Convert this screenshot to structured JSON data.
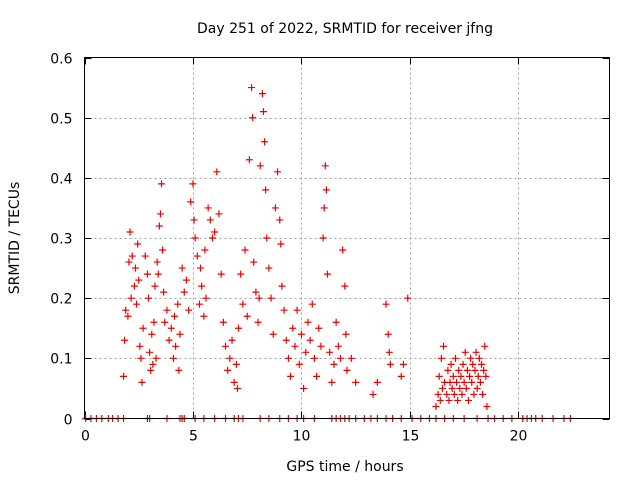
{
  "chart_data": {
    "type": "scatter",
    "title": "Day 251 of 2022, SRMTID for receiver jfng",
    "xlabel": "GPS time / hours",
    "ylabel": "SRMTID / TECUs",
    "xlim": [
      0,
      24.2
    ],
    "ylim": [
      0,
      0.6
    ],
    "xticks": [
      0,
      5,
      10,
      15,
      20
    ],
    "xtick_labels": [
      "0",
      "5",
      "10",
      "15",
      "20"
    ],
    "yticks": [
      0,
      0.1,
      0.2,
      0.3,
      0.4,
      0.5,
      0.6
    ],
    "ytick_labels": [
      "0",
      "0.1",
      "0.2",
      "0.3",
      "0.4",
      "0.5",
      "0.6"
    ],
    "grid": true,
    "marker": "plus",
    "series": [
      {
        "name": "SRMTID",
        "color": "#ee0000",
        "points": [
          [
            0.05,
            0
          ],
          [
            0.3,
            0
          ],
          [
            0.55,
            0
          ],
          [
            0.8,
            0
          ],
          [
            1.1,
            0
          ],
          [
            1.3,
            0
          ],
          [
            1.55,
            0
          ],
          [
            1.8,
            0
          ],
          [
            2.9,
            0
          ],
          [
            3.0,
            0
          ],
          [
            3.8,
            0
          ],
          [
            4.4,
            0
          ],
          [
            4.5,
            0
          ],
          [
            4.6,
            0
          ],
          [
            5.1,
            0
          ],
          [
            5.5,
            0
          ],
          [
            6.0,
            0
          ],
          [
            6.5,
            0
          ],
          [
            6.9,
            0
          ],
          [
            7.1,
            0
          ],
          [
            7.3,
            0
          ],
          [
            8.1,
            0
          ],
          [
            8.5,
            0
          ],
          [
            9.0,
            0
          ],
          [
            9.4,
            0
          ],
          [
            9.8,
            0
          ],
          [
            10.1,
            0
          ],
          [
            10.6,
            0
          ],
          [
            11.4,
            0
          ],
          [
            11.6,
            0
          ],
          [
            11.8,
            0
          ],
          [
            12.0,
            0
          ],
          [
            12.2,
            0
          ],
          [
            12.5,
            0
          ],
          [
            12.9,
            0
          ],
          [
            13.2,
            0
          ],
          [
            13.5,
            0
          ],
          [
            13.9,
            0
          ],
          [
            14.2,
            0
          ],
          [
            14.6,
            0
          ],
          [
            15.1,
            0
          ],
          [
            15.5,
            0
          ],
          [
            15.9,
            0
          ],
          [
            16.2,
            0
          ],
          [
            16.6,
            0
          ],
          [
            17.0,
            0
          ],
          [
            17.5,
            0
          ],
          [
            18.1,
            0
          ],
          [
            18.6,
            0
          ],
          [
            18.9,
            0
          ],
          [
            19.3,
            0
          ],
          [
            19.7,
            0
          ],
          [
            20.2,
            0
          ],
          [
            20.4,
            0
          ],
          [
            20.6,
            0
          ],
          [
            20.8,
            0
          ],
          [
            21.1,
            0
          ],
          [
            21.6,
            0
          ],
          [
            22.1,
            0
          ],
          [
            22.4,
            0
          ],
          [
            1.8,
            0.07
          ],
          [
            1.85,
            0.13
          ],
          [
            1.9,
            0.18
          ],
          [
            2.0,
            0.17
          ],
          [
            2.05,
            0.26
          ],
          [
            2.1,
            0.31
          ],
          [
            2.15,
            0.2
          ],
          [
            2.2,
            0.27
          ],
          [
            2.3,
            0.22
          ],
          [
            2.35,
            0.25
          ],
          [
            2.4,
            0.19
          ],
          [
            2.45,
            0.29
          ],
          [
            2.5,
            0.23
          ],
          [
            2.55,
            0.12
          ],
          [
            2.6,
            0.1
          ],
          [
            2.65,
            0.06
          ],
          [
            2.7,
            0.15
          ],
          [
            2.8,
            0.27
          ],
          [
            2.9,
            0.24
          ],
          [
            2.95,
            0.2
          ],
          [
            3.0,
            0.11
          ],
          [
            3.05,
            0.08
          ],
          [
            3.1,
            0.14
          ],
          [
            3.15,
            0.09
          ],
          [
            3.2,
            0.16
          ],
          [
            3.25,
            0.22
          ],
          [
            3.3,
            0.1
          ],
          [
            3.35,
            0.26
          ],
          [
            3.4,
            0.24
          ],
          [
            3.45,
            0.32
          ],
          [
            3.5,
            0.34
          ],
          [
            3.55,
            0.39
          ],
          [
            3.6,
            0.28
          ],
          [
            3.65,
            0.21
          ],
          [
            3.7,
            0.16
          ],
          [
            3.8,
            0.18
          ],
          [
            3.9,
            0.13
          ],
          [
            4.0,
            0.15
          ],
          [
            4.1,
            0.1
          ],
          [
            4.15,
            0.17
          ],
          [
            4.2,
            0.12
          ],
          [
            4.3,
            0.19
          ],
          [
            4.35,
            0.08
          ],
          [
            4.4,
            0.14
          ],
          [
            4.5,
            0.25
          ],
          [
            4.6,
            0.21
          ],
          [
            4.7,
            0.23
          ],
          [
            4.8,
            0.18
          ],
          [
            4.9,
            0.36
          ],
          [
            5.0,
            0.39
          ],
          [
            5.05,
            0.33
          ],
          [
            5.1,
            0.3
          ],
          [
            5.2,
            0.27
          ],
          [
            5.3,
            0.19
          ],
          [
            5.35,
            0.25
          ],
          [
            5.4,
            0.22
          ],
          [
            5.5,
            0.17
          ],
          [
            5.55,
            0.28
          ],
          [
            5.6,
            0.2
          ],
          [
            5.7,
            0.35
          ],
          [
            5.8,
            0.33
          ],
          [
            5.9,
            0.3
          ],
          [
            6.0,
            0.31
          ],
          [
            6.1,
            0.41
          ],
          [
            6.2,
            0.34
          ],
          [
            6.3,
            0.24
          ],
          [
            6.4,
            0.16
          ],
          [
            6.5,
            0.12
          ],
          [
            6.6,
            0.08
          ],
          [
            6.7,
            0.1
          ],
          [
            6.8,
            0.13
          ],
          [
            6.9,
            0.06
          ],
          [
            7.0,
            0.09
          ],
          [
            7.05,
            0.05
          ],
          [
            7.1,
            0.15
          ],
          [
            7.2,
            0.24
          ],
          [
            7.3,
            0.19
          ],
          [
            7.4,
            0.28
          ],
          [
            7.5,
            0.17
          ],
          [
            7.6,
            0.43
          ],
          [
            7.7,
            0.55
          ],
          [
            7.75,
            0.5
          ],
          [
            7.8,
            0.26
          ],
          [
            7.9,
            0.21
          ],
          [
            8.0,
            0.16
          ],
          [
            8.05,
            0.2
          ],
          [
            8.1,
            0.42
          ],
          [
            8.2,
            0.54
          ],
          [
            8.25,
            0.51
          ],
          [
            8.3,
            0.46
          ],
          [
            8.35,
            0.38
          ],
          [
            8.4,
            0.3
          ],
          [
            8.5,
            0.25
          ],
          [
            8.6,
            0.2
          ],
          [
            8.7,
            0.14
          ],
          [
            8.8,
            0.35
          ],
          [
            8.9,
            0.41
          ],
          [
            9.0,
            0.33
          ],
          [
            9.05,
            0.29
          ],
          [
            9.1,
            0.22
          ],
          [
            9.2,
            0.18
          ],
          [
            9.3,
            0.13
          ],
          [
            9.4,
            0.1
          ],
          [
            9.5,
            0.07
          ],
          [
            9.6,
            0.15
          ],
          [
            9.7,
            0.12
          ],
          [
            9.8,
            0.18
          ],
          [
            9.9,
            0.09
          ],
          [
            10.0,
            0.14
          ],
          [
            10.1,
            0.05
          ],
          [
            10.2,
            0.11
          ],
          [
            10.3,
            0.16
          ],
          [
            10.4,
            0.13
          ],
          [
            10.5,
            0.19
          ],
          [
            10.6,
            0.1
          ],
          [
            10.7,
            0.07
          ],
          [
            10.8,
            0.15
          ],
          [
            10.9,
            0.12
          ],
          [
            11.0,
            0.3
          ],
          [
            11.05,
            0.35
          ],
          [
            11.1,
            0.42
          ],
          [
            11.15,
            0.38
          ],
          [
            11.2,
            0.24
          ],
          [
            11.3,
            0.11
          ],
          [
            11.4,
            0.06
          ],
          [
            11.5,
            0.09
          ],
          [
            11.6,
            0.16
          ],
          [
            11.7,
            0.12
          ],
          [
            11.8,
            0.1
          ],
          [
            11.9,
            0.28
          ],
          [
            12.0,
            0.22
          ],
          [
            12.05,
            0.14
          ],
          [
            12.1,
            0.08
          ],
          [
            12.3,
            0.1
          ],
          [
            12.5,
            0.06
          ],
          [
            13.3,
            0.04
          ],
          [
            13.5,
            0.06
          ],
          [
            13.9,
            0.19
          ],
          [
            14.0,
            0.14
          ],
          [
            14.05,
            0.11
          ],
          [
            14.1,
            0.09
          ],
          [
            14.6,
            0.07
          ],
          [
            14.7,
            0.09
          ],
          [
            14.9,
            0.2
          ],
          [
            16.2,
            0.02
          ],
          [
            16.3,
            0.04
          ],
          [
            16.35,
            0.07
          ],
          [
            16.4,
            0.03
          ],
          [
            16.45,
            0.1
          ],
          [
            16.5,
            0.05
          ],
          [
            16.55,
            0.12
          ],
          [
            16.6,
            0.06
          ],
          [
            16.7,
            0.04
          ],
          [
            16.75,
            0.08
          ],
          [
            16.8,
            0.03
          ],
          [
            16.85,
            0.06
          ],
          [
            16.9,
            0.09
          ],
          [
            16.95,
            0.05
          ],
          [
            17.0,
            0.07
          ],
          [
            17.05,
            0.04
          ],
          [
            17.1,
            0.1
          ],
          [
            17.15,
            0.06
          ],
          [
            17.2,
            0.03
          ],
          [
            17.25,
            0.08
          ],
          [
            17.3,
            0.05
          ],
          [
            17.35,
            0.07
          ],
          [
            17.4,
            0.04
          ],
          [
            17.45,
            0.09
          ],
          [
            17.5,
            0.06
          ],
          [
            17.55,
            0.11
          ],
          [
            17.6,
            0.05
          ],
          [
            17.65,
            0.08
          ],
          [
            17.7,
            0.03
          ],
          [
            17.75,
            0.07
          ],
          [
            17.8,
            0.1
          ],
          [
            17.85,
            0.06
          ],
          [
            17.9,
            0.09
          ],
          [
            17.95,
            0.04
          ],
          [
            18.0,
            0.08
          ],
          [
            18.05,
            0.11
          ],
          [
            18.1,
            0.05
          ],
          [
            18.15,
            0.07
          ],
          [
            18.2,
            0.1
          ],
          [
            18.25,
            0.06
          ],
          [
            18.3,
            0.09
          ],
          [
            18.35,
            0.04
          ],
          [
            18.4,
            0.08
          ],
          [
            18.45,
            0.12
          ],
          [
            18.5,
            0.07
          ],
          [
            18.55,
            0.02
          ]
        ]
      }
    ]
  }
}
